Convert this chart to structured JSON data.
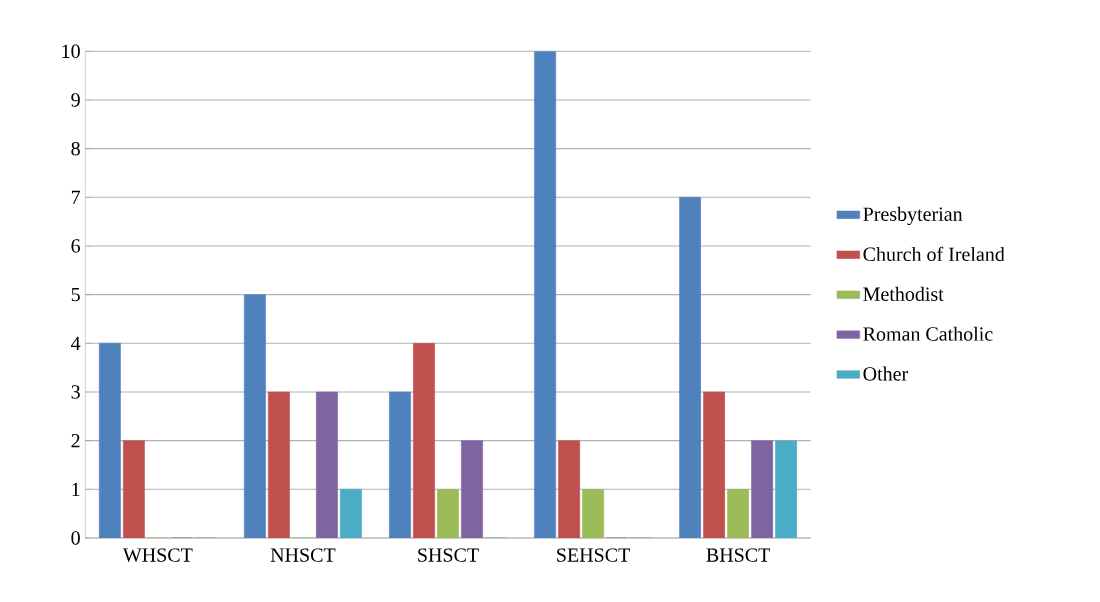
{
  "chart_data": {
    "type": "bar",
    "categories": [
      "WHSCT",
      "NHSCT",
      "SHSCT",
      "SEHSCT",
      "BHSCT"
    ],
    "series": [
      {
        "name": "Presbyterian",
        "color": "#4f81bd",
        "values": [
          4,
          5,
          3,
          10,
          7
        ]
      },
      {
        "name": "Church of Ireland",
        "color": "#c0504d",
        "values": [
          2,
          3,
          4,
          2,
          3
        ]
      },
      {
        "name": "Methodist",
        "color": "#9bbb59",
        "values": [
          0,
          0,
          1,
          1,
          1
        ]
      },
      {
        "name": "Roman Catholic",
        "color": "#8064a2",
        "values": [
          0,
          3,
          2,
          0,
          2
        ]
      },
      {
        "name": "Other",
        "color": "#4bacc6",
        "values": [
          0,
          1,
          0,
          0,
          2
        ]
      }
    ],
    "ylim": [
      0,
      10
    ],
    "yticks": [
      0,
      1,
      2,
      3,
      4,
      5,
      6,
      7,
      8,
      9,
      10
    ],
    "grid": "y",
    "legend": "right"
  }
}
